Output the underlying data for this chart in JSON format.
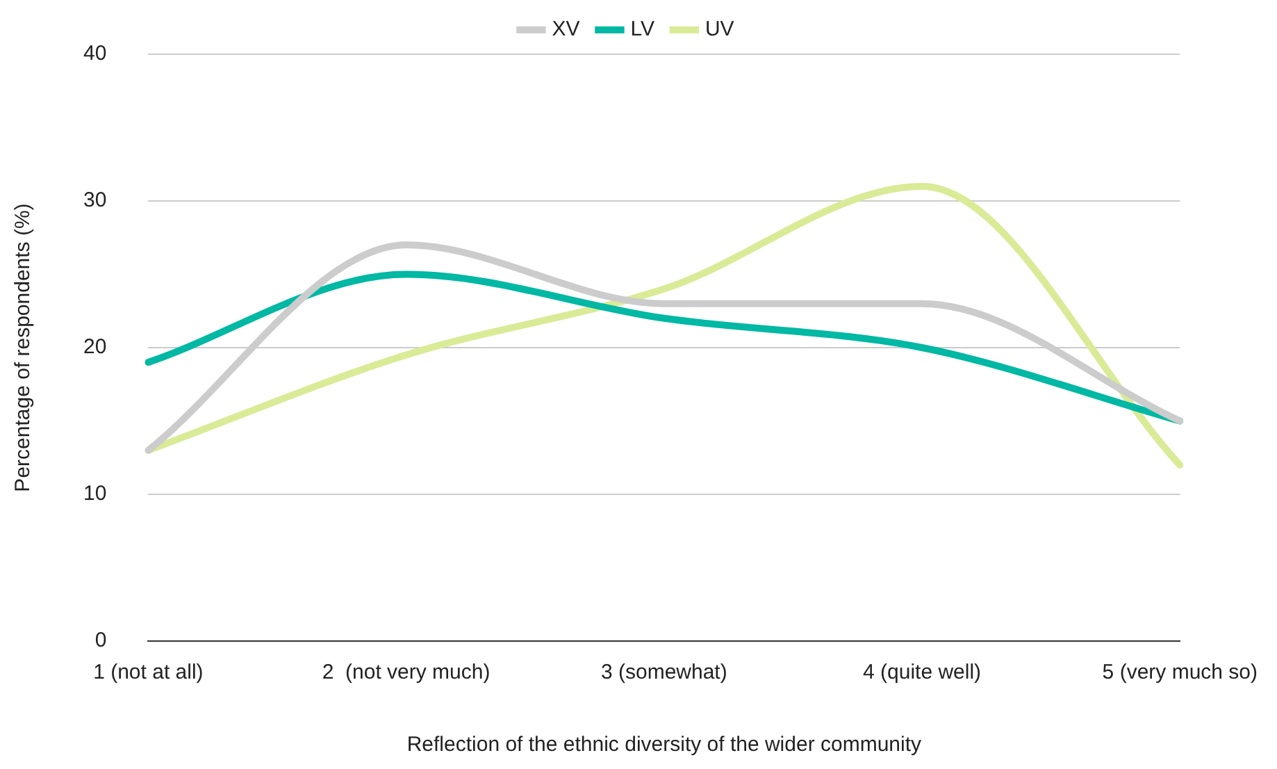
{
  "chart_data": {
    "type": "line",
    "xlabel": "Reflection of the ethnic diversity of the wider community",
    "ylabel": "Percentage of respondents (%)",
    "categories": [
      "1 (not at all)",
      "2  (not very much)",
      "3 (somewhat)",
      "4 (quite well)",
      "5 (very much so)"
    ],
    "series": [
      {
        "name": "XV",
        "color": "#cccccc",
        "values": [
          13,
          27,
          23,
          23,
          15
        ]
      },
      {
        "name": "LV",
        "color": "#00b8a3",
        "values": [
          19,
          25,
          22,
          20,
          15
        ]
      },
      {
        "name": "UV",
        "color": "#d9eb96",
        "values": [
          13,
          19.5,
          24,
          31,
          12
        ]
      }
    ],
    "ylim": [
      0,
      40
    ],
    "yticks": [
      0,
      10,
      20,
      30,
      40
    ],
    "grid": "y",
    "legend": "top",
    "marker": "none",
    "line_style": "solid"
  }
}
